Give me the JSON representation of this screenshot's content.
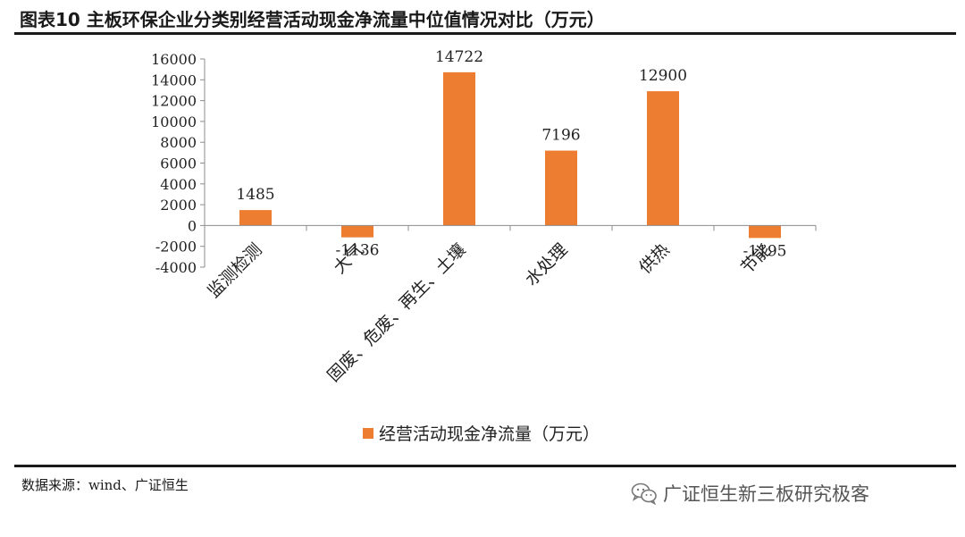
{
  "figure": {
    "title": "图表10    主板环保企业分类别经营活动现金净流量中位值情况对比（万元）",
    "source": "数据来源：wind、广证恒生",
    "watermark": "广证恒生新三板研究极客",
    "watermark_icon": "wechat-icon"
  },
  "chart_data": {
    "type": "bar",
    "title": "",
    "xlabel": "",
    "ylabel": "",
    "categories": [
      "监测检测",
      "大气",
      "固废、危废、再生、土壤",
      "水处理",
      "供热",
      "节能"
    ],
    "series": [
      {
        "name": "经营活动现金净流量（万元）",
        "values": [
          1485,
          -1136,
          14722,
          7196,
          12900,
          -1195
        ],
        "data_labels": [
          "1485",
          "-1136",
          "14722",
          "7196",
          "12900",
          "-1195"
        ],
        "color": "#ED7D31"
      }
    ],
    "ylim": [
      -4000,
      16000
    ],
    "yticks": [
      16000,
      14000,
      12000,
      10000,
      8000,
      6000,
      4000,
      2000,
      0,
      -2000,
      -4000
    ],
    "grid": false,
    "legend_position": "bottom",
    "colors": {
      "bar": "#ED7D31",
      "axis": "#8c8c8c"
    }
  }
}
